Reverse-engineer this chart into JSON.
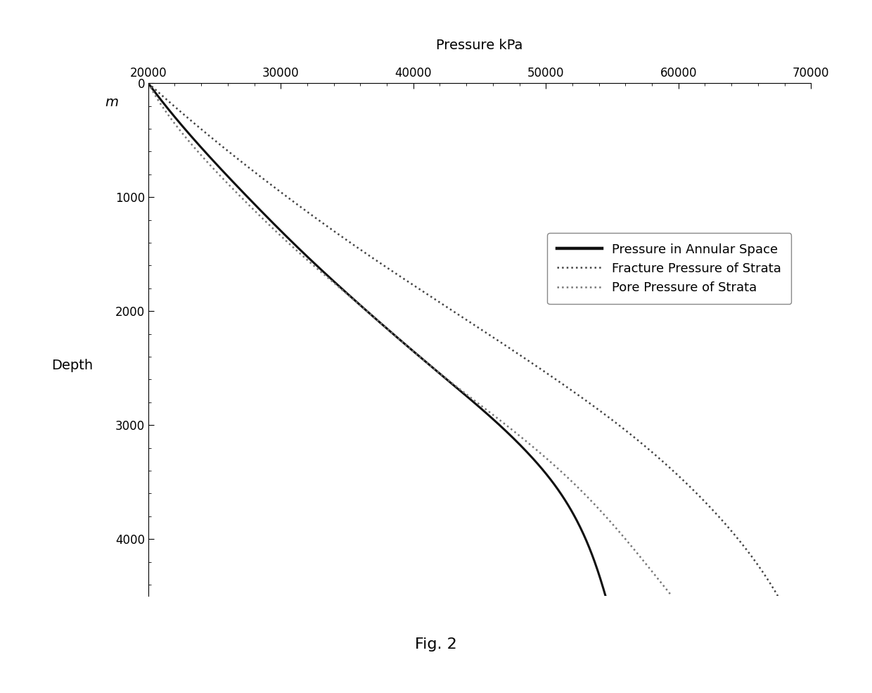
{
  "xlabel_top": "Pressure kPa",
  "ylabel_text": "Depth",
  "ylabel_unit": "m",
  "fig_label": "Fig. 2",
  "x_min": 20000,
  "x_max": 70000,
  "x_ticks": [
    20000,
    30000,
    40000,
    50000,
    60000,
    70000
  ],
  "y_min": 0,
  "y_max": 4500,
  "y_ticks": [
    0,
    1000,
    2000,
    3000,
    4000
  ],
  "annular_pressure": {
    "label": "Pressure in Annular Space",
    "color": "#111111",
    "linestyle": "solid",
    "linewidth": 2.2,
    "depth_points": [
      0,
      500,
      1000,
      1500,
      2000,
      2500,
      3000,
      3500,
      4000,
      4500
    ],
    "pressure_points": [
      20000,
      23500,
      27500,
      31800,
      36500,
      41500,
      46500,
      50500,
      53000,
      54500
    ]
  },
  "fracture_pressure": {
    "label": "Fracture Pressure of Strata",
    "color": "#444444",
    "linestyle": "dotted",
    "linewidth": 1.8,
    "depth_points": [
      0,
      500,
      1000,
      1500,
      2000,
      2500,
      3000,
      3500,
      4000,
      4500
    ],
    "pressure_points": [
      20000,
      25000,
      30500,
      36500,
      43000,
      49500,
      55500,
      60500,
      64500,
      67500
    ]
  },
  "pore_pressure": {
    "label": "Pore Pressure of Strata",
    "color": "#777777",
    "linestyle": "dotted",
    "linewidth": 1.8,
    "depth_points": [
      0,
      500,
      1000,
      1500,
      2000,
      2500,
      3000,
      3500,
      4000,
      4500
    ],
    "pressure_points": [
      20000,
      23000,
      27000,
      31500,
      36500,
      41500,
      47000,
      52000,
      56000,
      59500
    ]
  },
  "background_color": "#ffffff",
  "legend_fontsize": 13,
  "tick_fontsize": 12,
  "label_fontsize": 14,
  "fig_label_fontsize": 16
}
